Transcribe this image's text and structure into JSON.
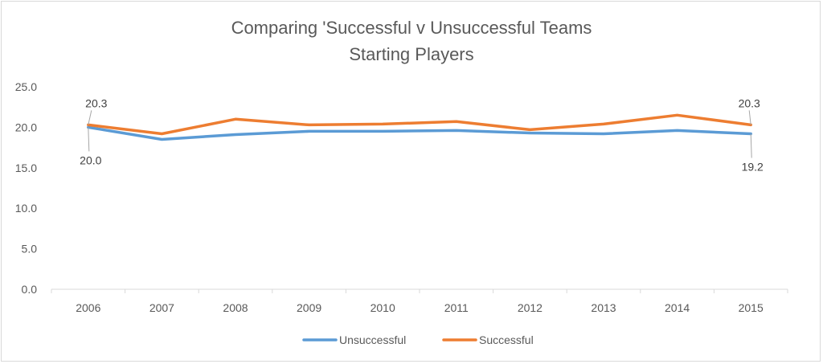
{
  "chart_data": {
    "type": "line",
    "title_lines": [
      "Comparing 'Successful v Unsuccessful Teams",
      "Starting Players"
    ],
    "categories": [
      "2006",
      "2007",
      "2008",
      "2009",
      "2010",
      "2011",
      "2012",
      "2013",
      "2014",
      "2015"
    ],
    "ylim": [
      0,
      25
    ],
    "yticks": [
      "0.0",
      "5.0",
      "10.0",
      "15.0",
      "20.0",
      "25.0"
    ],
    "grid": false,
    "legend_position": "bottom",
    "series": [
      {
        "name": "Unsuccessful",
        "color": "#5b9bd5",
        "values": [
          20.0,
          18.5,
          19.1,
          19.5,
          19.5,
          19.6,
          19.3,
          19.2,
          19.6,
          19.2
        ]
      },
      {
        "name": "Successful",
        "color": "#ed7d31",
        "values": [
          20.3,
          19.2,
          21.0,
          20.3,
          20.4,
          20.7,
          19.7,
          20.4,
          21.5,
          20.3
        ]
      }
    ],
    "data_labels": [
      {
        "series": "Successful",
        "category": "2006",
        "text": "20.3"
      },
      {
        "series": "Unsuccessful",
        "category": "2006",
        "text": "20.0"
      },
      {
        "series": "Successful",
        "category": "2015",
        "text": "20.3"
      },
      {
        "series": "Unsuccessful",
        "category": "2015",
        "text": "19.2"
      }
    ]
  }
}
